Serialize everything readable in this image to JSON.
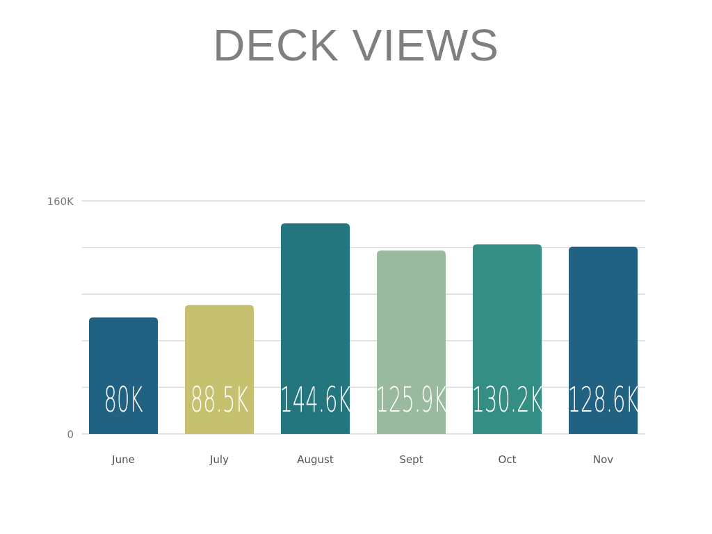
{
  "chart_data": {
    "type": "bar",
    "title": "DECK VIEWS",
    "categories": [
      "June",
      "July",
      "August",
      "Sept",
      "Oct",
      "Nov"
    ],
    "values": [
      80000,
      88500,
      144600,
      125900,
      130200,
      128600
    ],
    "data_labels": [
      "80K",
      "88.5K",
      "144.6K",
      "125.9K",
      "130.2K",
      "128.6K"
    ],
    "colors": [
      "#216182",
      "#c6c16e",
      "#23767e",
      "#9aba9f",
      "#348e83",
      "#216182"
    ],
    "ylim": [
      0,
      160000
    ],
    "y_tick_labels": [
      {
        "value": 0,
        "label": "0"
      },
      {
        "value": 160000,
        "label": "160K"
      }
    ],
    "gridlines": [
      0,
      32000,
      64000,
      96000,
      128000,
      160000
    ],
    "grid": true,
    "xlabel": "",
    "ylabel": ""
  }
}
